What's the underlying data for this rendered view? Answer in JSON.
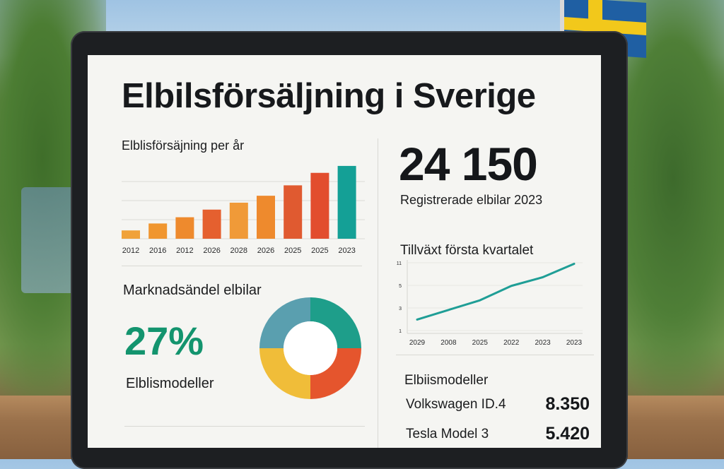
{
  "dashboard": {
    "title": "Elbilsförsäljning i Sverige",
    "bar_title": "Elblisförsäjning per år",
    "share_title": "Marknadsändel elbilar",
    "share_value": "27%",
    "share_subtitle": "Elblismodeller",
    "big_number": "24 150",
    "big_number_label": "Registrerade elbilar 2023",
    "growth_title": "Tillväxt första kvartalet",
    "models_title": "Elbiismodeller",
    "models": [
      {
        "name": "Volkswagen ID.4",
        "count": "8.350"
      },
      {
        "name": "Tesla Model 3",
        "count": "5.420"
      }
    ]
  },
  "chart_data": [
    {
      "type": "bar",
      "categories": [
        "2012",
        "2016",
        "2012",
        "2026",
        "2028",
        "2026",
        "2025",
        "2025",
        "2023"
      ],
      "values": [
        12,
        22,
        31,
        42,
        52,
        62,
        77,
        95,
        105
      ],
      "colors": [
        "#f0a23a",
        "#f0962f",
        "#ee8a2d",
        "#e5602f",
        "#f09a38",
        "#ee8a2d",
        "#e05a30",
        "#e24d2e",
        "#14a096"
      ],
      "grid": true
    },
    {
      "type": "line",
      "x": [
        "2029",
        "2008",
        "2025",
        "2022",
        "2023",
        "2023"
      ],
      "y": [
        1,
        2,
        3,
        4.5,
        5.4,
        6.8
      ],
      "y_ticks": [
        "1",
        "3",
        "5",
        "11"
      ],
      "color": "#1f9e96",
      "grid": true
    },
    {
      "type": "pie",
      "style": "donut",
      "values": [
        25,
        25,
        25,
        25
      ],
      "colors": [
        "#1e9e8a",
        "#e5552d",
        "#f0bd39",
        "#5a9faf"
      ]
    }
  ]
}
